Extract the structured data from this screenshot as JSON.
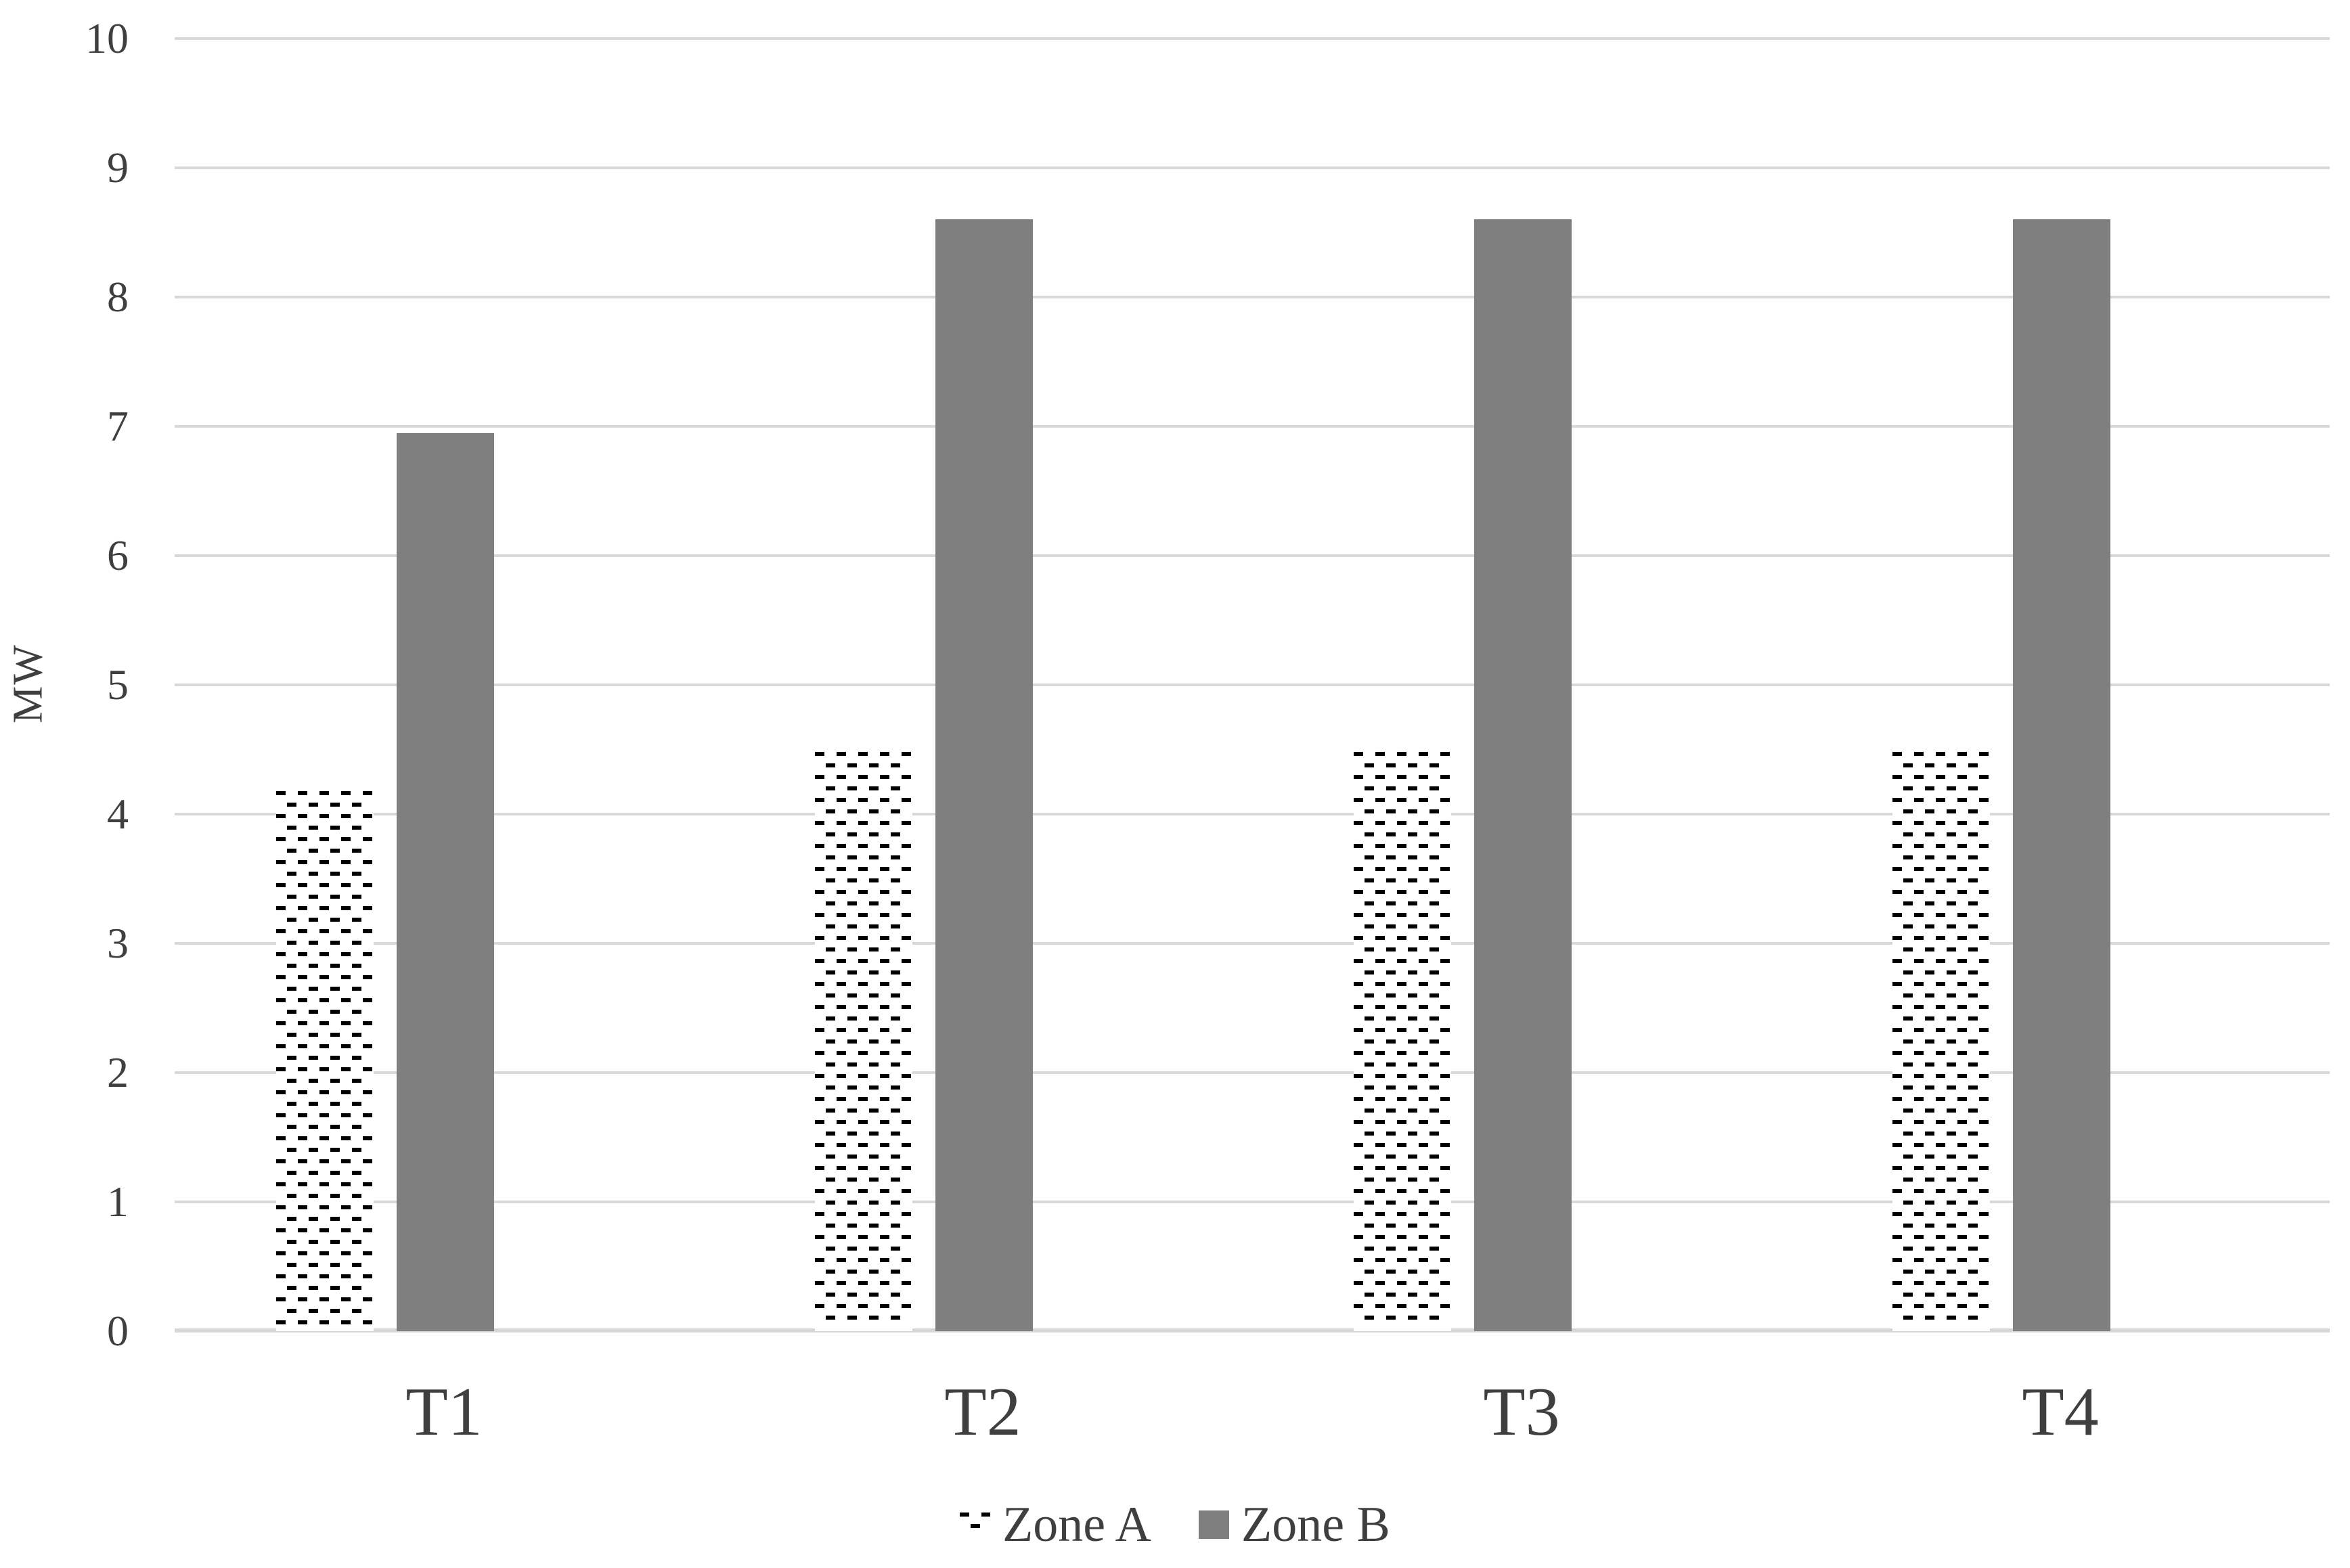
{
  "chart_data": {
    "type": "bar",
    "title": "",
    "categories": [
      "T1",
      "T2",
      "T3",
      "T4"
    ],
    "series": [
      {
        "name": "Zone A",
        "style": "dashed-pattern",
        "fill": "#ffffff",
        "pattern_color": "#000000",
        "values": [
          4.2,
          4.5,
          4.5,
          4.5
        ]
      },
      {
        "name": "Zone B",
        "style": "solid",
        "fill": "#7f7f7f",
        "values": [
          6.95,
          8.6,
          8.6,
          8.6
        ]
      }
    ],
    "xlabel": "",
    "ylabel": "MW",
    "ylim": [
      0,
      10
    ],
    "ytick_step": 1,
    "yticks": [
      "0",
      "1",
      "2",
      "3",
      "4",
      "5",
      "6",
      "7",
      "8",
      "9",
      "10"
    ],
    "grid": true,
    "gridline_color": "#d9d9d9",
    "text_color": "#3f3f3f",
    "background_color": "#ffffff",
    "legend_position": "bottom-center"
  }
}
